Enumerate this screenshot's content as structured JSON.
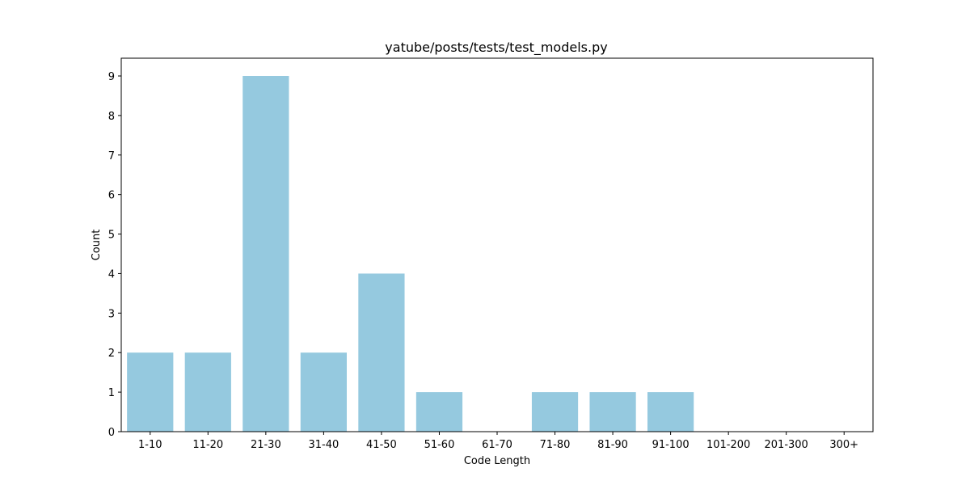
{
  "chart_data": {
    "type": "bar",
    "title": "yatube/posts/tests/test_models.py",
    "xlabel": "Code Length",
    "ylabel": "Count",
    "categories": [
      "1-10",
      "11-20",
      "21-30",
      "31-40",
      "41-50",
      "51-60",
      "61-70",
      "71-80",
      "81-90",
      "91-100",
      "101-200",
      "201-300",
      "300+"
    ],
    "values": [
      2,
      2,
      9,
      2,
      4,
      1,
      0,
      1,
      1,
      1,
      0,
      0,
      0
    ],
    "yticks": [
      0,
      1,
      2,
      3,
      4,
      5,
      6,
      7,
      8,
      9
    ],
    "ylim": [
      0,
      9.45
    ],
    "grid": false,
    "bar_color": "#95c9df"
  }
}
